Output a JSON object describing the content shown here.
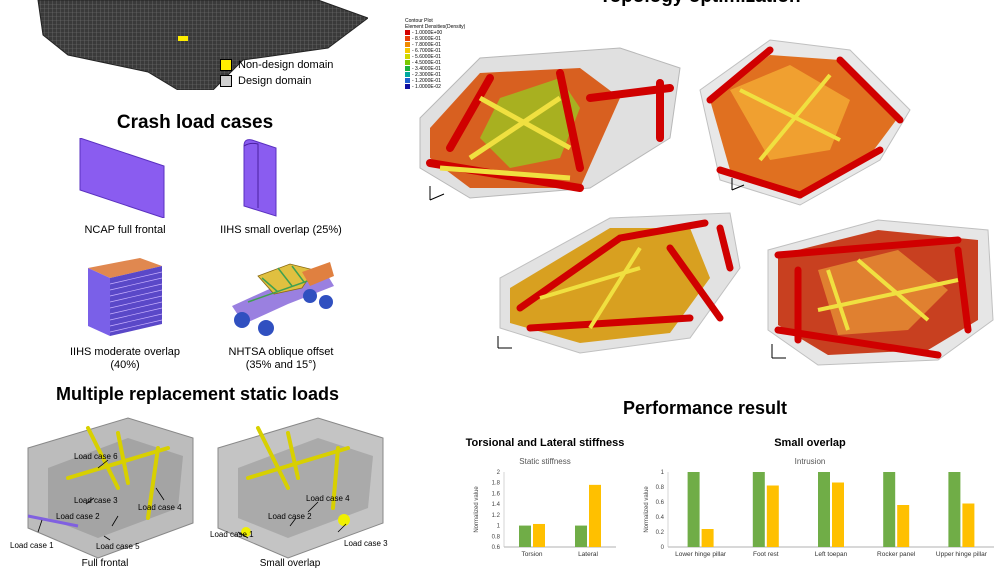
{
  "header": {
    "title": "Topology optimization"
  },
  "legend": {
    "non_design": "Non-design domain",
    "design": "Design domain",
    "non_design_color": "#ffee00",
    "design_color": "#d0d0d0"
  },
  "crash": {
    "title": "Crash load cases",
    "cases": [
      {
        "label": "NCAP full frontal"
      },
      {
        "label": "IIHS small overlap (25%)"
      },
      {
        "label": "IIHS moderate overlap\n(40%)"
      },
      {
        "label": "NHTSA oblique offset\n(35% and 15°)"
      }
    ]
  },
  "static_loads": {
    "title": "Multiple replacement static loads",
    "left": {
      "caption": "Full frontal",
      "labels": [
        "Load case 6",
        "Load case 3",
        "Load case 4",
        "Load case 2",
        "Load case 1",
        "Load case 5"
      ]
    },
    "right": {
      "caption": "Small overlap",
      "labels": [
        "Load case 4",
        "Load case 2",
        "Load case 1",
        "Load case 3"
      ]
    }
  },
  "contour": {
    "title": "Contour Plot",
    "subtitle": "Element Densities(Density)",
    "values": [
      "1.0000E+00",
      "8.9000E-01",
      "7.8000E-01",
      "6.7000E-01",
      "5.6000E-01",
      "4.5000E-01",
      "3.4000E-01",
      "2.3000E-01",
      "1.2000E-01",
      "1.0000E-02"
    ],
    "colors": [
      "#d40000",
      "#e8400a",
      "#f08a00",
      "#f5c800",
      "#cfd800",
      "#7ac800",
      "#1ab040",
      "#00a8a0",
      "#2060d0",
      "#1010a0"
    ]
  },
  "performance": {
    "title": "Performance result"
  },
  "chart_data": [
    {
      "type": "bar",
      "title": "Torsional and Lateral stiffness",
      "subtitle": "Static stiffness",
      "ylabel": "Normalized value",
      "ylim": [
        0.6,
        2
      ],
      "yticks": [
        "0.6",
        "0.8",
        "1",
        "1.2",
        "1.4",
        "1.6",
        "1.8",
        "2"
      ],
      "categories": [
        "Torsion",
        "Lateral"
      ],
      "series": [
        {
          "color": "#70ad47",
          "values": [
            1.0,
            1.0
          ]
        },
        {
          "color": "#ffc000",
          "values": [
            1.03,
            1.76
          ]
        }
      ]
    },
    {
      "type": "bar",
      "title": "Small overlap",
      "subtitle": "Intrusion",
      "ylabel": "Normalized value",
      "ylim": [
        0,
        1
      ],
      "yticks": [
        "0",
        "0.2",
        "0.4",
        "0.6",
        "0.8",
        "1"
      ],
      "categories": [
        "Lower hinge pillar",
        "Foot rest",
        "Left toepan",
        "Rocker panel",
        "Upper hinge pillar"
      ],
      "series": [
        {
          "color": "#70ad47",
          "values": [
            1.0,
            1.0,
            1.0,
            1.0,
            1.0
          ]
        },
        {
          "color": "#ffc000",
          "values": [
            0.24,
            0.82,
            0.86,
            0.56,
            0.58
          ]
        }
      ]
    }
  ]
}
